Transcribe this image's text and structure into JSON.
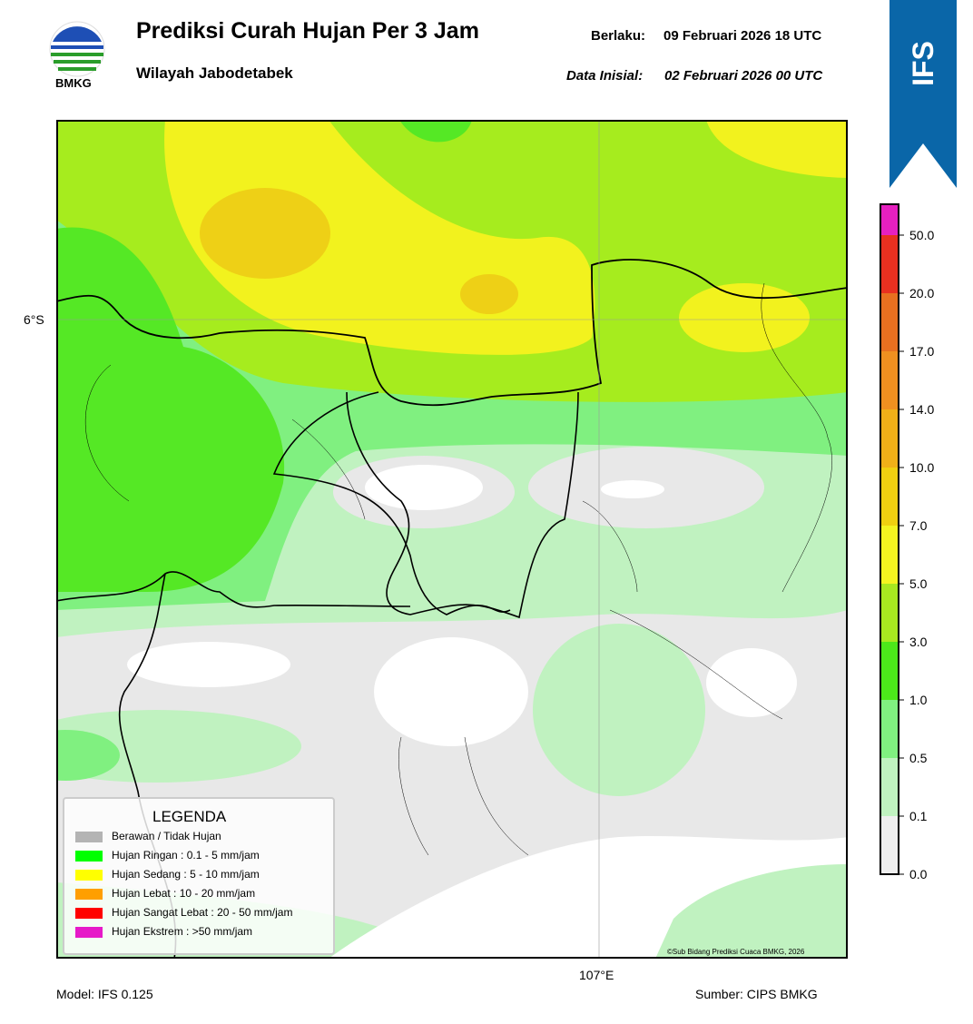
{
  "header": {
    "logo_text": "BMKG",
    "title": "Prediksi Curah Hujan Per 3 Jam",
    "subtitle": "Wilayah Jabodetabek",
    "valid_label": "Berlaku:",
    "valid_value": "09 Februari 2026 18 UTC",
    "init_label": "Data Inisial:",
    "init_value": "02 Februari 2026 00 UTC",
    "badge": "IFS"
  },
  "map": {
    "lat_label": "6°S",
    "lon_label": "107°E",
    "credit": "©Sub Bidang Prediksi Cuaca BMKG, 2026"
  },
  "legend": {
    "title": "LEGENDA",
    "items": [
      {
        "label": "Berawan / Tidak Hujan",
        "color": "#b4b4b4"
      },
      {
        "label": "Hujan Ringan : 0.1 - 5 mm/jam",
        "color": "#00ff00"
      },
      {
        "label": "Hujan Sedang : 5 - 10 mm/jam",
        "color": "#ffff00"
      },
      {
        "label": "Hujan Lebat : 10 - 20 mm/jam",
        "color": "#ff9f00"
      },
      {
        "label": "Hujan Sangat Lebat : 20 - 50 mm/jam",
        "color": "#ff0000"
      },
      {
        "label": "Hujan Ekstrem : >50 mm/jam",
        "color": "#e619c8"
      }
    ]
  },
  "colorbar": {
    "ticks": [
      "0.0",
      "0.1",
      "0.5",
      "1.0",
      "3.0",
      "5.0",
      "7.0",
      "10.0",
      "14.0",
      "17.0",
      "20.0",
      "50.0"
    ],
    "colors": [
      "#efefef",
      "#c0f2c0",
      "#80f080",
      "#4ce81a",
      "#a8e820",
      "#f4f420",
      "#f0d010",
      "#f0b018",
      "#f09020",
      "#e87020",
      "#e83020",
      "#e620c0"
    ]
  },
  "footer": {
    "model": "Model: IFS 0.125",
    "source": "Sumber: CIPS BMKG"
  }
}
